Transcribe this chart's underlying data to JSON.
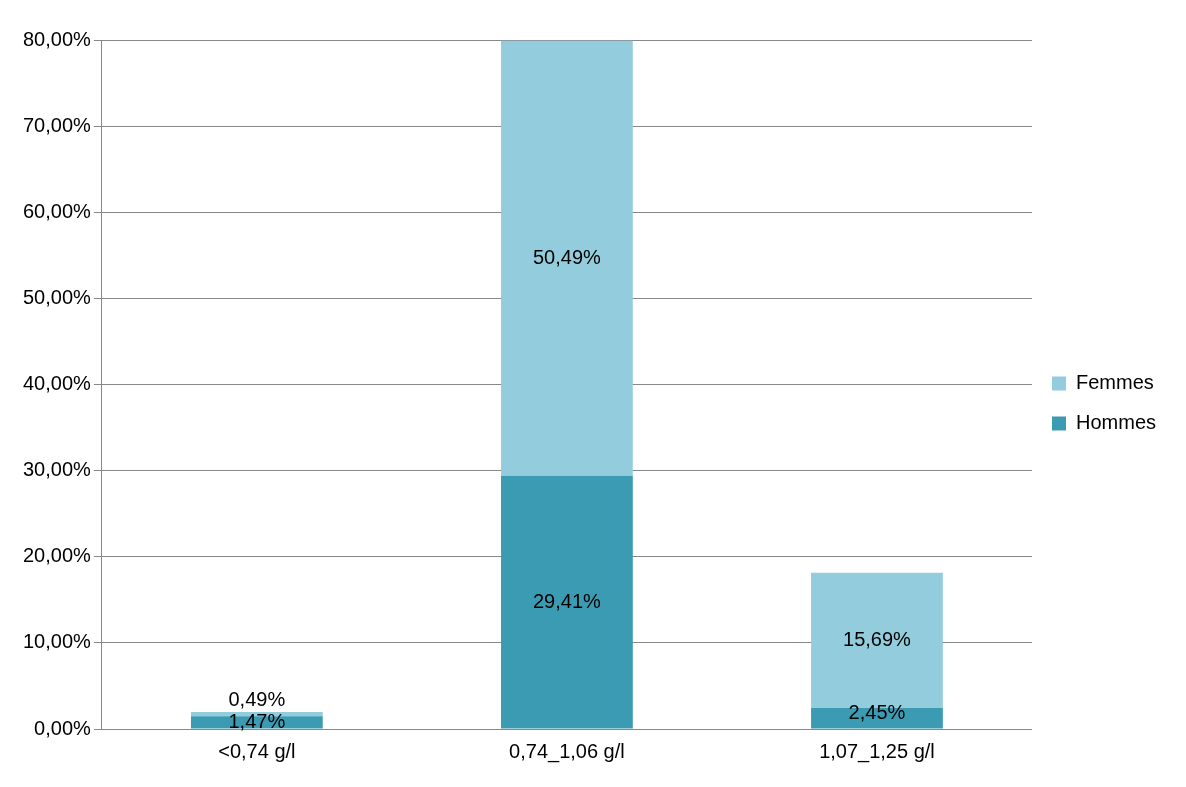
{
  "chart_data": {
    "type": "bar",
    "stacked": true,
    "categories": [
      "<0,74 g/l",
      "0,74_1,06 g/l",
      "1,07_1,25 g/l"
    ],
    "series": [
      {
        "name": "Hommes",
        "color": "#3b9bb3",
        "values": [
          1.47,
          29.41,
          2.45
        ],
        "value_labels": [
          "1,47%",
          "29,41%",
          "2,45%"
        ]
      },
      {
        "name": "Femmes",
        "color": "#93cddd",
        "values": [
          0.49,
          50.49,
          15.69
        ],
        "value_labels": [
          "0,49%",
          "50,49%",
          "15,69%"
        ]
      }
    ],
    "ylim": [
      0,
      80
    ],
    "yticks": [
      {
        "value": 0,
        "label": "0,00%"
      },
      {
        "value": 10,
        "label": "10,00%"
      },
      {
        "value": 20,
        "label": "20,00%"
      },
      {
        "value": 30,
        "label": "30,00%"
      },
      {
        "value": 40,
        "label": "40,00%"
      },
      {
        "value": 50,
        "label": "50,00%"
      },
      {
        "value": 60,
        "label": "60,00%"
      },
      {
        "value": 70,
        "label": "70,00%"
      },
      {
        "value": 80,
        "label": "80,00%"
      }
    ],
    "grid": "y",
    "legend": "right"
  }
}
